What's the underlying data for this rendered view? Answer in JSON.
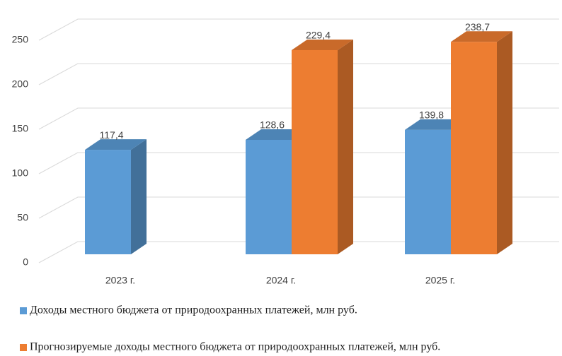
{
  "chart_data": {
    "type": "bar3d",
    "categories": [
      "2023 г.",
      "2024 г.",
      "2025 г."
    ],
    "series": [
      {
        "name": "Доходы местного бюджета от природоохранных платежей, млн руб.",
        "color": "#5b9bd5",
        "values": [
          117.4,
          128.6,
          139.8
        ],
        "value_labels": [
          "117,4",
          "128,6",
          "139,8"
        ]
      },
      {
        "name": "Прогнозируемые доходы местного бюджета от природоохранных платежей, млн руб.",
        "color": "#ed7d31",
        "values": [
          null,
          229.4,
          238.7
        ],
        "value_labels": [
          null,
          "229,4",
          "238,7"
        ]
      }
    ],
    "ylim": [
      0,
      250
    ],
    "yticks": [
      0,
      50,
      100,
      150,
      200,
      250
    ],
    "grid": true,
    "legend": "bottom"
  }
}
